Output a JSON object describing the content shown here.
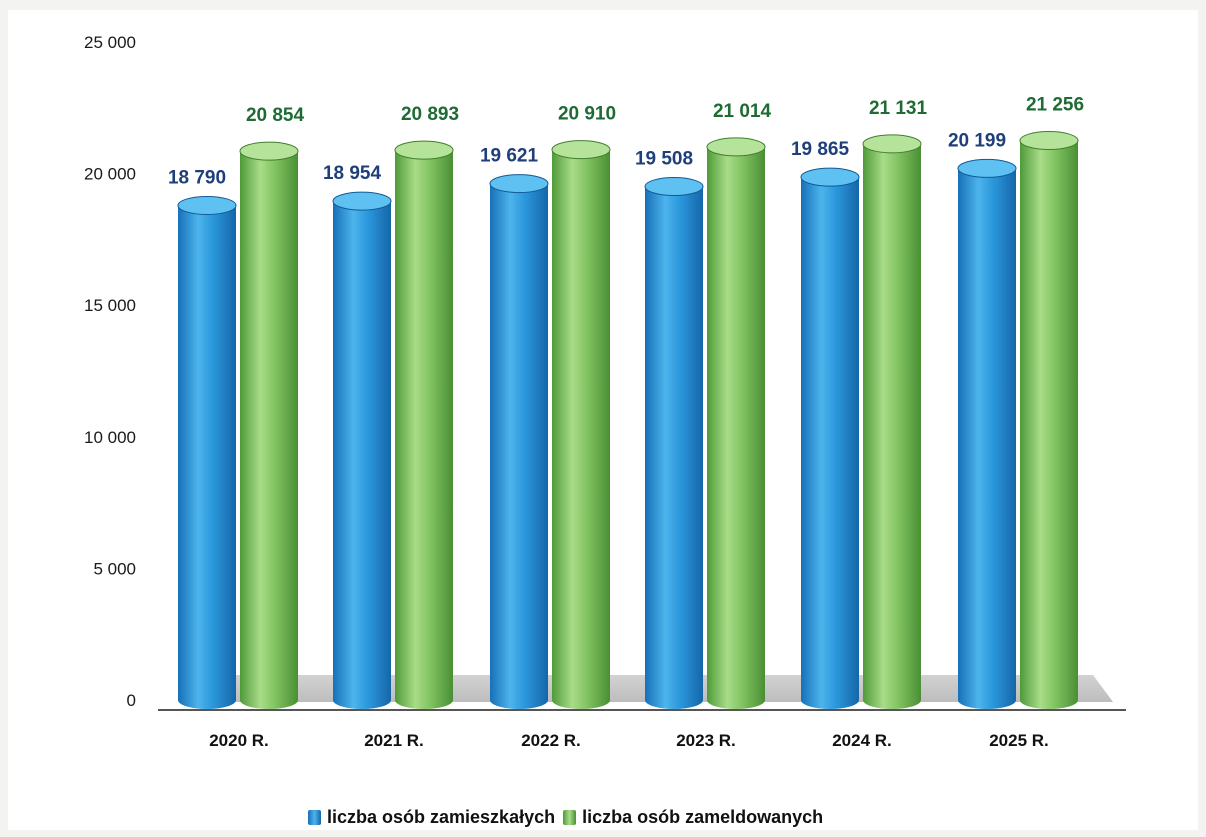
{
  "chart_data": {
    "type": "bar",
    "categories": [
      "2020 R.",
      "2021 R.",
      "2022 R.",
      "2023 R.",
      "2024 R.",
      "2025 R."
    ],
    "series": [
      {
        "name": "liczba osób zamieszkałych",
        "values": [
          18790,
          18954,
          19621,
          19508,
          19865,
          20199
        ],
        "labels": [
          "18 790",
          "18 954",
          "19 621",
          "19 508",
          "19 865",
          "20 199"
        ],
        "color": "#1e8fd6",
        "label_color": "#1f3f7a"
      },
      {
        "name": "liczba osób zameldowanych",
        "values": [
          20854,
          20893,
          20910,
          21014,
          21131,
          21256
        ],
        "labels": [
          "20 854",
          "20 893",
          "20 910",
          "21 014",
          "21 131",
          "21 256"
        ],
        "color": "#7cc05c",
        "label_color": "#1e6b34"
      }
    ],
    "ylim": [
      0,
      25000
    ],
    "yticks": [
      0,
      5000,
      10000,
      15000,
      20000,
      25000
    ],
    "ytick_labels": [
      "0",
      "5 000",
      "10 000",
      "15 000",
      "20 000",
      "25 000"
    ],
    "grid": false,
    "legend_position": "bottom",
    "style": "3d-cylinder"
  }
}
